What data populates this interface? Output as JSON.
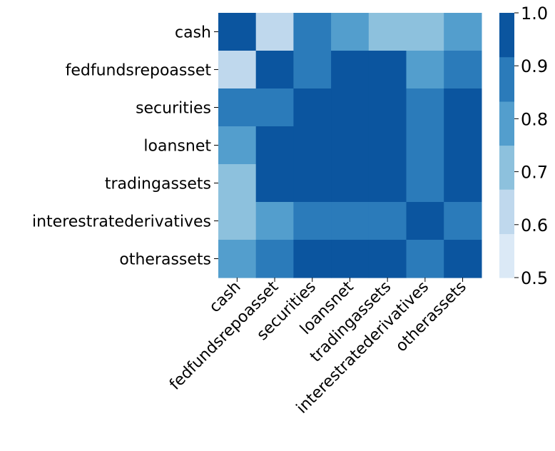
{
  "chart_data": {
    "type": "heatmap",
    "rows": [
      "cash",
      "fedfundsrepoasset",
      "securities",
      "loansnet",
      "tradingassets",
      "interestratederivatives",
      "otherassets"
    ],
    "columns": [
      "cash",
      "fedfundsrepoasset",
      "securities",
      "loansnet",
      "tradingassets",
      "interestratederivatives",
      "otherassets"
    ],
    "values": [
      [
        1.0,
        0.63,
        0.87,
        0.79,
        0.73,
        0.73,
        0.79
      ],
      [
        0.63,
        1.0,
        0.87,
        0.97,
        0.97,
        0.79,
        0.87
      ],
      [
        0.87,
        0.87,
        1.0,
        0.97,
        0.97,
        0.87,
        0.97
      ],
      [
        0.79,
        0.97,
        0.97,
        1.0,
        0.97,
        0.87,
        0.97
      ],
      [
        0.73,
        0.97,
        0.97,
        0.97,
        1.0,
        0.87,
        0.97
      ],
      [
        0.73,
        0.79,
        0.87,
        0.87,
        0.87,
        1.0,
        0.87
      ],
      [
        0.79,
        0.87,
        0.97,
        0.97,
        0.97,
        0.87,
        1.0
      ]
    ],
    "colorbar": {
      "min": 0.5,
      "max": 1.0,
      "ticks": [
        "0.5",
        "0.6",
        "0.7",
        "0.8",
        "0.9",
        "1.0"
      ],
      "bins": [
        {
          "from": 0.5,
          "to": 0.583,
          "color": "#dbe9f6"
        },
        {
          "from": 0.583,
          "to": 0.667,
          "color": "#bfd8ed"
        },
        {
          "from": 0.667,
          "to": 0.75,
          "color": "#8dc1dd"
        },
        {
          "from": 0.75,
          "to": 0.833,
          "color": "#539ecd"
        },
        {
          "from": 0.833,
          "to": 0.917,
          "color": "#2b7bba"
        },
        {
          "from": 0.917,
          "to": 1.0,
          "color": "#0b559f"
        }
      ]
    },
    "title": "",
    "xlabel": "",
    "ylabel": ""
  }
}
